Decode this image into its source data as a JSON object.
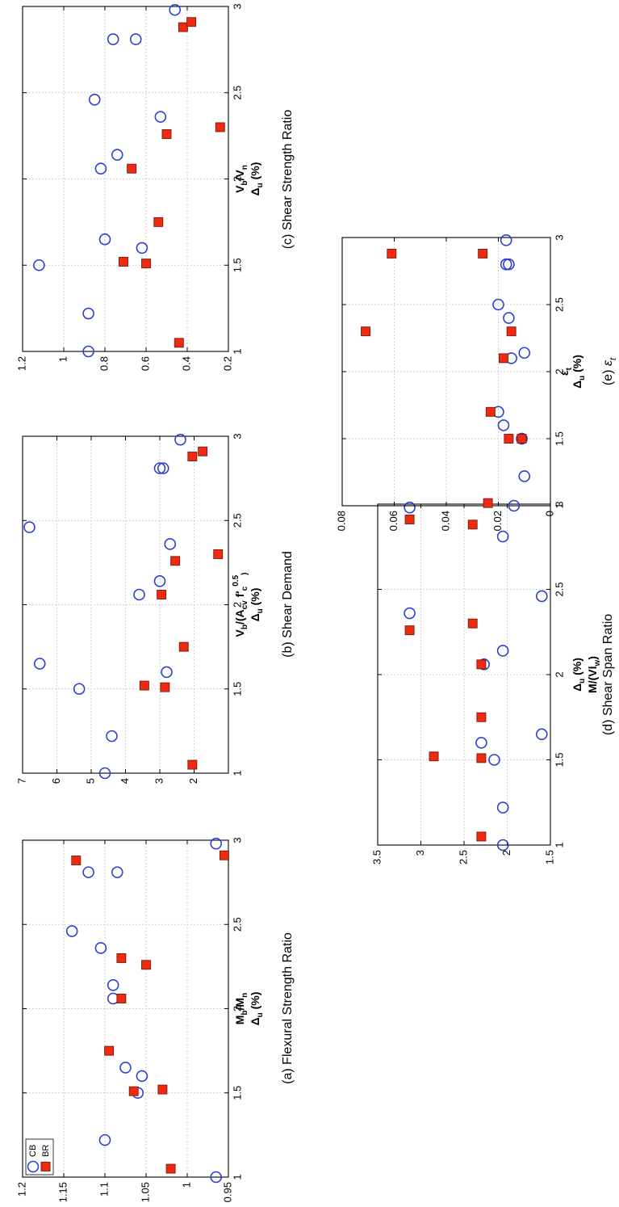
{
  "colors": {
    "cb": "#2b3fd4",
    "br": "#ef2a10"
  },
  "legend": [
    "CB",
    "BR"
  ],
  "captions": [
    "(a)  Flexural Strength Ratio",
    "(b)  Shear Demand",
    "(c)  Shear Strength Ratio",
    "(d)  Shear Span Ratio",
    "(e)"
  ],
  "chart_data": [
    {
      "type": "scatter",
      "caption": "(a)  Flexural Strength Ratio",
      "xlabel": "Δu (%)",
      "ylabel": "Mb/Mn",
      "xlim": [
        1,
        3
      ],
      "ylim": [
        0.95,
        1.2
      ],
      "xticks": [
        "1",
        "1.5",
        "2",
        "2.5",
        "3"
      ],
      "yticks": [
        "0.95",
        "1",
        "1.05",
        "1.1",
        "1.15",
        "1.2"
      ],
      "grid": true,
      "legend_position": "top-left",
      "series": [
        {
          "name": "CB",
          "marker": "circle",
          "x": [
            1.0,
            1.22,
            1.5,
            1.6,
            1.65,
            2.06,
            2.14,
            2.36,
            2.46,
            2.81,
            2.81,
            2.98
          ],
          "y": [
            0.965,
            1.1,
            1.06,
            1.055,
            1.075,
            1.09,
            1.09,
            1.105,
            1.14,
            1.085,
            1.12,
            0.965
          ]
        },
        {
          "name": "BR",
          "marker": "square",
          "x": [
            1.05,
            1.52,
            1.51,
            1.75,
            2.06,
            2.26,
            2.3,
            2.88,
            2.91
          ],
          "y": [
            1.02,
            1.03,
            1.065,
            1.095,
            1.08,
            1.05,
            1.08,
            1.135,
            0.955
          ]
        }
      ]
    },
    {
      "type": "scatter",
      "caption": "(b)  Shear Demand",
      "xlabel": "Δu (%)",
      "ylabel": "Vb/(Acv f'c^0.5)",
      "xlim": [
        1,
        3
      ],
      "ylim": [
        1,
        7
      ],
      "xticks": [
        "1",
        "1.5",
        "2",
        "2.5",
        "3"
      ],
      "yticks": [
        "2",
        "3",
        "4",
        "5",
        "6",
        "7"
      ],
      "grid": true,
      "series": [
        {
          "name": "CB",
          "marker": "circle",
          "x": [
            1.0,
            1.22,
            1.5,
            1.6,
            1.65,
            2.06,
            2.14,
            2.36,
            2.46,
            2.81,
            2.81,
            2.98
          ],
          "y": [
            4.6,
            4.4,
            5.35,
            2.8,
            6.5,
            3.6,
            3.0,
            2.7,
            6.8,
            3.0,
            2.9,
            2.4
          ]
        },
        {
          "name": "BR",
          "marker": "square",
          "x": [
            1.05,
            1.51,
            1.52,
            1.75,
            2.06,
            2.26,
            2.3,
            2.88,
            2.91
          ],
          "y": [
            2.05,
            2.85,
            3.45,
            2.3,
            2.95,
            2.55,
            1.3,
            2.05,
            1.75
          ]
        }
      ]
    },
    {
      "type": "scatter",
      "caption": "(c)  Shear Strength Ratio",
      "xlabel": "Δu (%)",
      "ylabel": "Vb/Vn",
      "xlim": [
        1,
        3
      ],
      "ylim": [
        0.2,
        1.2
      ],
      "xticks": [
        "1",
        "1.5",
        "2",
        "2.5",
        "3"
      ],
      "yticks": [
        "0.2",
        "0.4",
        "0.6",
        "0.8",
        "1",
        "1.2"
      ],
      "grid": true,
      "series": [
        {
          "name": "CB",
          "marker": "circle",
          "x": [
            1.0,
            1.22,
            1.5,
            1.6,
            1.65,
            2.06,
            2.14,
            2.36,
            2.46,
            2.81,
            2.81,
            2.98
          ],
          "y": [
            0.88,
            0.88,
            1.12,
            0.62,
            0.8,
            0.82,
            0.74,
            0.53,
            0.85,
            0.76,
            0.65,
            0.46
          ]
        },
        {
          "name": "BR",
          "marker": "square",
          "x": [
            1.05,
            1.51,
            1.52,
            1.75,
            2.06,
            2.26,
            2.3,
            2.88,
            2.91
          ],
          "y": [
            0.44,
            0.6,
            0.71,
            0.54,
            0.67,
            0.5,
            0.24,
            0.42,
            0.38
          ]
        }
      ]
    },
    {
      "type": "scatter",
      "caption": "(d)  Shear Span Ratio",
      "xlabel": "Δu (%)",
      "ylabel": "M/(Vlw)",
      "xlim": [
        1,
        3
      ],
      "ylim": [
        1.5,
        3.5
      ],
      "xticks": [
        "1",
        "1.5",
        "2",
        "2.5",
        "3"
      ],
      "yticks": [
        "1.5",
        "2",
        "2.5",
        "3",
        "3.5"
      ],
      "grid": true,
      "series": [
        {
          "name": "CB",
          "marker": "circle",
          "x": [
            1.0,
            1.22,
            1.5,
            1.6,
            1.65,
            2.06,
            2.14,
            2.36,
            2.46,
            2.81,
            2.98
          ],
          "y": [
            2.05,
            2.05,
            2.15,
            2.3,
            1.6,
            2.27,
            2.05,
            3.13,
            1.6,
            2.05,
            3.13
          ]
        },
        {
          "name": "BR",
          "marker": "square",
          "x": [
            1.05,
            1.51,
            1.52,
            1.75,
            2.06,
            2.26,
            2.3,
            2.88,
            2.91
          ],
          "y": [
            2.3,
            2.3,
            2.85,
            2.3,
            2.3,
            3.13,
            2.4,
            2.4,
            3.13
          ]
        }
      ]
    },
    {
      "type": "scatter",
      "caption": "(e)",
      "caption_symbol": "εt",
      "xlabel": "Δu (%)",
      "ylabel": "εt",
      "xlim": [
        1,
        3
      ],
      "ylim": [
        0,
        0.08
      ],
      "xticks": [
        "1",
        "1.5",
        "2",
        "2.5",
        "3"
      ],
      "yticks": [
        "0",
        "0.02",
        "0.04",
        "0.06",
        "0.08"
      ],
      "grid": true,
      "series": [
        {
          "name": "CB",
          "marker": "circle",
          "x": [
            1.0,
            1.22,
            1.5,
            1.5,
            1.6,
            1.7,
            2.1,
            2.14,
            2.4,
            2.5,
            2.8,
            2.8,
            2.98
          ],
          "y": [
            0.014,
            0.01,
            0.011,
            0.011,
            0.018,
            0.02,
            0.015,
            0.01,
            0.016,
            0.02,
            0.016,
            0.017,
            0.017
          ]
        },
        {
          "name": "BR",
          "marker": "square",
          "x": [
            1.02,
            1.5,
            1.5,
            1.7,
            2.1,
            2.3,
            2.3,
            2.88,
            2.88
          ],
          "y": [
            0.024,
            0.011,
            0.016,
            0.023,
            0.018,
            0.015,
            0.071,
            0.061,
            0.026
          ]
        }
      ]
    }
  ]
}
